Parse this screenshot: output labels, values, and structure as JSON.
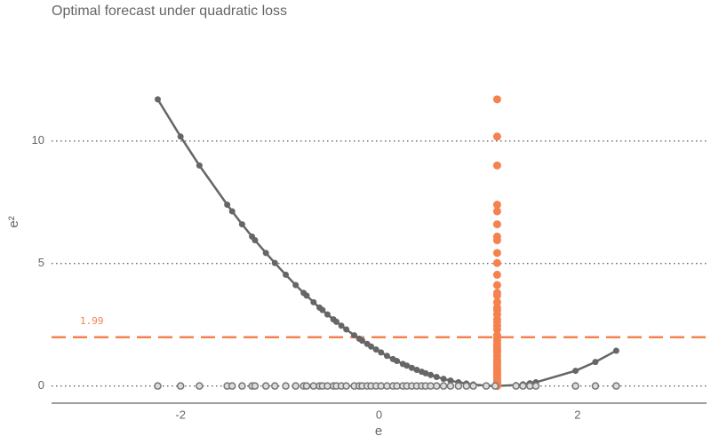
{
  "chart_data": {
    "type": "loss-curve",
    "title": "Optimal forecast under quadratic loss",
    "x_label": "e",
    "y_label": "e²",
    "forecast": 1.19,
    "mean_loss": 1.99,
    "x": [
      -2.23,
      -2.0,
      -1.81,
      -1.53,
      -1.48,
      -1.38,
      -1.28,
      -1.25,
      -1.14,
      -1.05,
      -0.94,
      -0.84,
      -0.76,
      -0.73,
      -0.66,
      -0.6,
      -0.57,
      -0.52,
      -0.46,
      -0.43,
      -0.38,
      -0.33,
      -0.25,
      -0.2,
      -0.17,
      -0.12,
      -0.08,
      -0.03,
      0.02,
      0.08,
      0.14,
      0.18,
      0.24,
      0.28,
      0.33,
      0.38,
      0.43,
      0.47,
      0.52,
      0.58,
      0.65,
      0.72,
      0.8,
      0.88,
      0.95,
      1.08,
      1.17,
      1.38,
      1.45,
      1.52,
      1.58,
      1.98,
      2.18,
      2.39
    ],
    "values": [
      11.7,
      10.18,
      9.0,
      7.4,
      7.13,
      6.6,
      6.1,
      5.95,
      5.43,
      5.02,
      4.54,
      4.12,
      3.8,
      3.69,
      3.42,
      3.2,
      3.1,
      2.92,
      2.72,
      2.62,
      2.46,
      2.31,
      2.07,
      1.93,
      1.85,
      1.72,
      1.61,
      1.49,
      1.37,
      1.23,
      1.1,
      1.02,
      0.9,
      0.83,
      0.74,
      0.66,
      0.58,
      0.52,
      0.45,
      0.37,
      0.29,
      0.22,
      0.15,
      0.1,
      0.06,
      0.01,
      0.0,
      0.04,
      0.07,
      0.11,
      0.15,
      0.62,
      0.98,
      1.44
    ],
    "curve_color": "#666666",
    "loss_color": "#f5814e",
    "xlim": [
      -3.3,
      3.3
    ],
    "ylim": [
      -0.7,
      13
    ],
    "xticks": [
      -2,
      0,
      2
    ],
    "yticks": [
      0,
      5,
      10
    ],
    "grid": true
  }
}
